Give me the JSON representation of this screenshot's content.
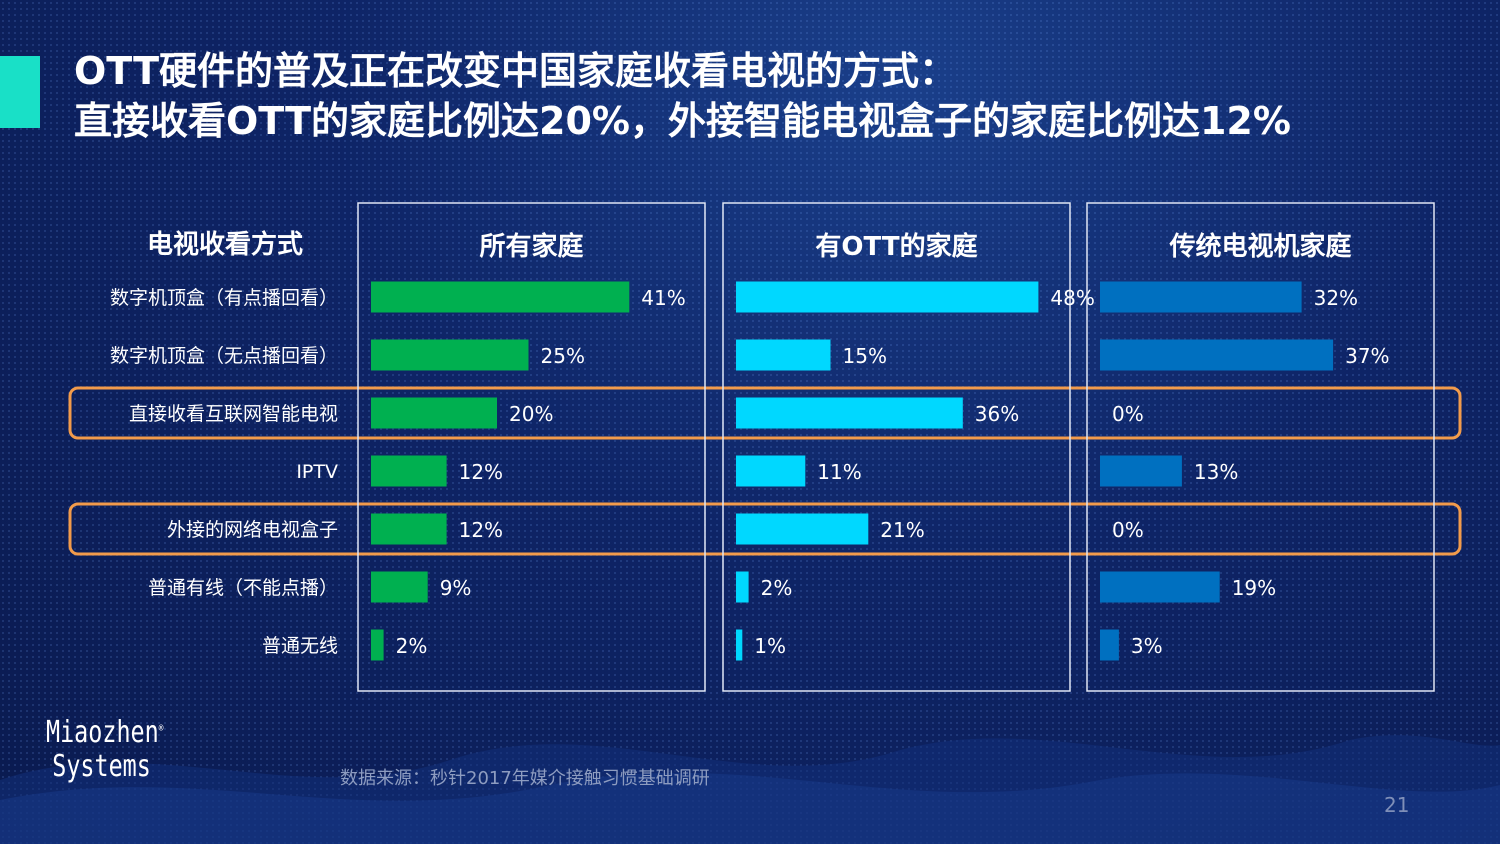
{
  "title": {
    "line1": "OTT硬件的普及正在改变中国家庭收看电视的方式：",
    "line2": "直接收看OTT的家庭比例达20%，外接智能电视盒子的家庭比例达12%"
  },
  "logo": {
    "line1": "Miaozhen",
    "line2": "Systems",
    "mark": "®"
  },
  "source": "数据来源：秒针2017年媒介接触习惯基础调研",
  "page_number": "21",
  "colors": {
    "highlight_box": "#f29b4b",
    "panel_border": "#e0e6f5",
    "accent": "#19e0c7"
  },
  "chart_data": {
    "type": "bar",
    "orientation": "horizontal",
    "row_header": "电视收看方式",
    "categories": [
      "数字机顶盒（有点播回看）",
      "数字机顶盒（无点播回看）",
      "直接收看互联网智能电视",
      "IPTV",
      "外接的网络电视盒子",
      "普通有线（不能点播）",
      "普通无线"
    ],
    "series": [
      {
        "name": "所有家庭",
        "color": "#00b050",
        "values": [
          41,
          25,
          20,
          12,
          12,
          9,
          2
        ],
        "labels": [
          "41%",
          "25%",
          "20%",
          "12%",
          "12%",
          "9%",
          "2%"
        ]
      },
      {
        "name": "有OTT的家庭",
        "color": "#00d8ff",
        "values": [
          48,
          15,
          36,
          11,
          21,
          2,
          1
        ],
        "labels": [
          "48%",
          "15%",
          "36%",
          "11%",
          "21%",
          "2%",
          "1%"
        ]
      },
      {
        "name": "传统电视机家庭",
        "color": "#0070c0",
        "values": [
          32,
          37,
          0,
          13,
          0,
          19,
          3
        ],
        "labels": [
          "32%",
          "37%",
          "0%",
          "13%",
          "0%",
          "19%",
          "3%"
        ]
      }
    ],
    "xlim": [
      0,
      60
    ],
    "highlighted_rows": [
      2,
      4
    ],
    "unit": "%"
  }
}
